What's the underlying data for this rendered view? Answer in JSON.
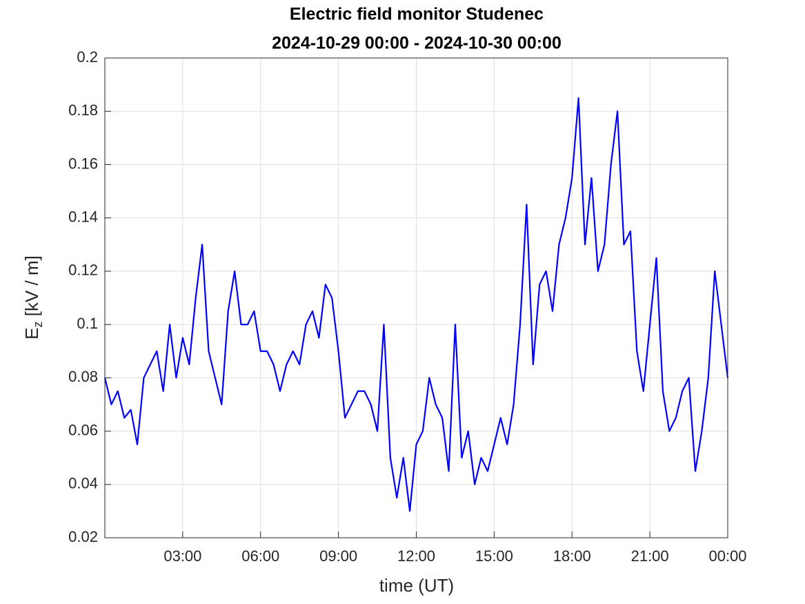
{
  "chart_data": {
    "type": "line",
    "title": "Electric field monitor Studenec",
    "subtitle": "2024-10-29 00:00 - 2024-10-30 00:00",
    "xlabel": "time (UT)",
    "ylabel": {
      "base": "E",
      "sub": "z",
      "rest": " [kV / m]"
    },
    "x": [
      0,
      0.25,
      0.5,
      0.75,
      1,
      1.25,
      1.5,
      1.75,
      2,
      2.25,
      2.5,
      2.75,
      3,
      3.25,
      3.5,
      3.75,
      4,
      4.25,
      4.5,
      4.75,
      5,
      5.25,
      5.5,
      5.75,
      6,
      6.25,
      6.5,
      6.75,
      7,
      7.25,
      7.5,
      7.75,
      8,
      8.25,
      8.5,
      8.75,
      9,
      9.25,
      9.5,
      9.75,
      10,
      10.25,
      10.5,
      10.75,
      11,
      11.25,
      11.5,
      11.75,
      12,
      12.25,
      12.5,
      12.75,
      13,
      13.25,
      13.5,
      13.75,
      14,
      14.25,
      14.5,
      14.75,
      15,
      15.25,
      15.5,
      15.75,
      16,
      16.25,
      16.5,
      16.75,
      17,
      17.25,
      17.5,
      17.75,
      18,
      18.25,
      18.5,
      18.75,
      19,
      19.25,
      19.5,
      19.75,
      20,
      20.25,
      20.5,
      20.75,
      21,
      21.25,
      21.5,
      21.75,
      22,
      22.25,
      22.5,
      22.75,
      23,
      23.25,
      23.5,
      23.75,
      24
    ],
    "series": [
      {
        "color": "#0000ff",
        "values": [
          0.08,
          0.07,
          0.075,
          0.065,
          0.068,
          0.055,
          0.08,
          0.085,
          0.09,
          0.075,
          0.1,
          0.08,
          0.095,
          0.085,
          0.11,
          0.13,
          0.09,
          0.08,
          0.07,
          0.105,
          0.12,
          0.1,
          0.1,
          0.105,
          0.09,
          0.09,
          0.085,
          0.075,
          0.085,
          0.09,
          0.085,
          0.1,
          0.105,
          0.095,
          0.115,
          0.11,
          0.09,
          0.065,
          0.07,
          0.075,
          0.075,
          0.07,
          0.06,
          0.1,
          0.05,
          0.035,
          0.05,
          0.03,
          0.055,
          0.06,
          0.08,
          0.07,
          0.065,
          0.045,
          0.1,
          0.05,
          0.06,
          0.04,
          0.05,
          0.045,
          0.055,
          0.065,
          0.055,
          0.07,
          0.1,
          0.145,
          0.085,
          0.115,
          0.12,
          0.105,
          0.13,
          0.14,
          0.155,
          0.185,
          0.13,
          0.155,
          0.12,
          0.13,
          0.16,
          0.18,
          0.13,
          0.135,
          0.09,
          0.075,
          0.1,
          0.125,
          0.075,
          0.06,
          0.065,
          0.075,
          0.08,
          0.045,
          0.06,
          0.08,
          0.12,
          0.1,
          0.08
        ]
      }
    ],
    "xlim": [
      0,
      24
    ],
    "xticks": [
      {
        "value": 3,
        "label": "03:00"
      },
      {
        "value": 6,
        "label": "06:00"
      },
      {
        "value": 9,
        "label": "09:00"
      },
      {
        "value": 12,
        "label": "12:00"
      },
      {
        "value": 15,
        "label": "15:00"
      },
      {
        "value": 18,
        "label": "18:00"
      },
      {
        "value": 21,
        "label": "21:00"
      },
      {
        "value": 24,
        "label": "00:00"
      }
    ],
    "ylim": [
      0.02,
      0.2
    ],
    "yticks": [
      0.02,
      0.04,
      0.06,
      0.08,
      0.1,
      0.12,
      0.14,
      0.16,
      0.18,
      0.2
    ],
    "grid": true
  }
}
